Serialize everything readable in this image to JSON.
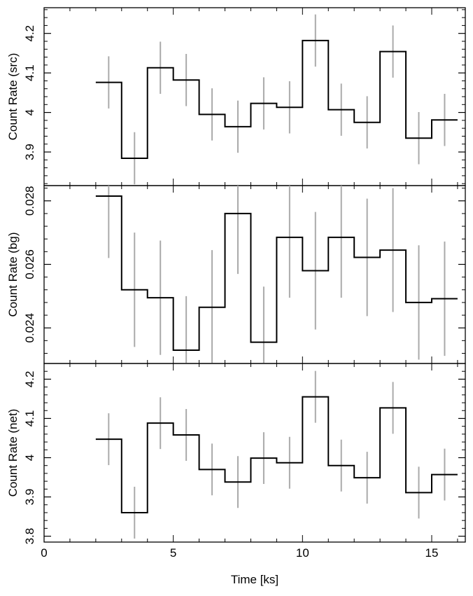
{
  "chart_data": {
    "type": "line",
    "subtype": "step-histogram-with-error-bars",
    "shared_x": {
      "xlabel": "Time [ks]",
      "xlim": [
        0,
        16.3
      ],
      "major_ticks": [
        0,
        5,
        10,
        15
      ],
      "tick_labels": [
        "0",
        "5",
        "10",
        "15"
      ],
      "minor_step": 1
    },
    "bins": [
      [
        2,
        3
      ],
      [
        3,
        4
      ],
      [
        4,
        5
      ],
      [
        5,
        6
      ],
      [
        6,
        7
      ],
      [
        7,
        8
      ],
      [
        8,
        9
      ],
      [
        9,
        10
      ],
      [
        10,
        11
      ],
      [
        11,
        12
      ],
      [
        12,
        13
      ],
      [
        13,
        14
      ],
      [
        14,
        15
      ],
      [
        15,
        16
      ]
    ],
    "bin_centers": [
      2.5,
      3.5,
      4.5,
      5.5,
      6.5,
      7.5,
      8.5,
      9.5,
      10.5,
      11.5,
      12.5,
      13.5,
      14.5,
      15.5
    ],
    "line_color": "#000000",
    "error_color": "#aaaaaa",
    "panels": [
      {
        "id": "src",
        "ylabel": "Count Rate (src)",
        "ylim": [
          3.815,
          4.265
        ],
        "major_ticks": [
          3.9,
          4.0,
          4.1,
          4.2
        ],
        "tick_labels": [
          "3.9",
          "4",
          "4.1",
          "4.2"
        ],
        "minor_step": 0.02,
        "values": [
          4.076,
          3.884,
          4.113,
          4.082,
          3.995,
          3.964,
          4.023,
          4.013,
          4.182,
          4.007,
          3.975,
          4.154,
          3.935,
          3.981
        ],
        "errors": [
          0.066,
          0.066,
          0.066,
          0.066,
          0.066,
          0.066,
          0.066,
          0.066,
          0.066,
          0.066,
          0.066,
          0.066,
          0.066,
          0.066
        ]
      },
      {
        "id": "bg",
        "ylabel": "Count Rate (bg)",
        "ylim": [
          0.02288,
          0.02848
        ],
        "major_ticks": [
          0.024,
          0.026,
          0.028
        ],
        "tick_labels": [
          "0.024",
          "0.026",
          "0.028"
        ],
        "minor_step": 0.0004,
        "values": [
          0.02815,
          0.0252,
          0.02495,
          0.0233,
          0.02465,
          0.0276,
          0.02355,
          0.02685,
          0.0258,
          0.02685,
          0.02622,
          0.02645,
          0.0248,
          0.02492
        ],
        "errors": [
          0.00195,
          0.0018,
          0.0018,
          0.0017,
          0.0018,
          0.0019,
          0.00175,
          0.0019,
          0.00185,
          0.0019,
          0.00185,
          0.00195,
          0.0018,
          0.0018
        ]
      },
      {
        "id": "net",
        "ylabel": "Count Rate (net)",
        "ylim": [
          3.785,
          4.24
        ],
        "major_ticks": [
          3.8,
          3.9,
          4.0,
          4.1,
          4.2
        ],
        "tick_labels": [
          "3.8",
          "3.9",
          "4",
          "4.1",
          "4.2"
        ],
        "minor_step": 0.02,
        "values": [
          4.047,
          3.86,
          4.088,
          4.058,
          3.97,
          3.938,
          3.999,
          3.987,
          4.155,
          3.98,
          3.949,
          4.127,
          3.911,
          3.957
        ],
        "errors": [
          0.066,
          0.066,
          0.066,
          0.066,
          0.066,
          0.066,
          0.066,
          0.066,
          0.066,
          0.066,
          0.066,
          0.066,
          0.066,
          0.066
        ]
      }
    ]
  }
}
